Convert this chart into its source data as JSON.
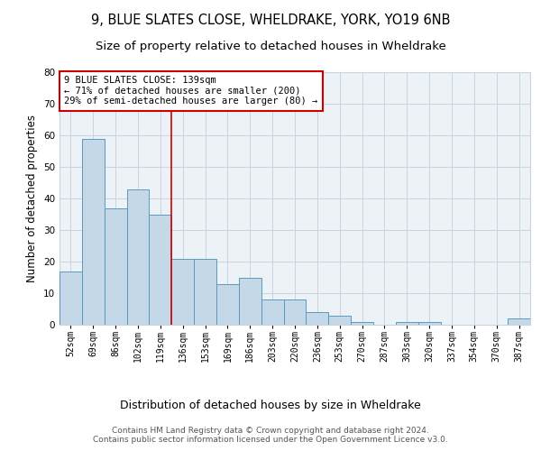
{
  "title1": "9, BLUE SLATES CLOSE, WHELDRAKE, YORK, YO19 6NB",
  "title2": "Size of property relative to detached houses in Wheldrake",
  "xlabel": "Distribution of detached houses by size in Wheldrake",
  "ylabel": "Number of detached properties",
  "categories": [
    "52sqm",
    "69sqm",
    "86sqm",
    "102sqm",
    "119sqm",
    "136sqm",
    "153sqm",
    "169sqm",
    "186sqm",
    "203sqm",
    "220sqm",
    "236sqm",
    "253sqm",
    "270sqm",
    "287sqm",
    "303sqm",
    "320sqm",
    "337sqm",
    "354sqm",
    "370sqm",
    "387sqm"
  ],
  "values": [
    17,
    59,
    37,
    43,
    35,
    21,
    21,
    13,
    15,
    8,
    8,
    4,
    3,
    1,
    0,
    1,
    1,
    0,
    0,
    0,
    2
  ],
  "bar_color": "#c5d8e8",
  "bar_edge_color": "#5a9abf",
  "vline_x": 4.5,
  "annotation_text_line1": "9 BLUE SLATES CLOSE: 139sqm",
  "annotation_text_line2": "← 71% of detached houses are smaller (200)",
  "annotation_text_line3": "29% of semi-detached houses are larger (80) →",
  "annotation_box_color": "#ffffff",
  "annotation_box_edge_color": "#cc0000",
  "vline_color": "#cc0000",
  "grid_color": "#c8d4e0",
  "background_color": "#edf2f7",
  "footer_text": "Contains HM Land Registry data © Crown copyright and database right 2024.\nContains public sector information licensed under the Open Government Licence v3.0.",
  "ylim": [
    0,
    80
  ],
  "title1_fontsize": 10.5,
  "title2_fontsize": 9.5,
  "xlabel_fontsize": 9,
  "ylabel_fontsize": 8.5,
  "tick_fontsize": 7,
  "annotation_fontsize": 7.5,
  "footer_fontsize": 6.5
}
